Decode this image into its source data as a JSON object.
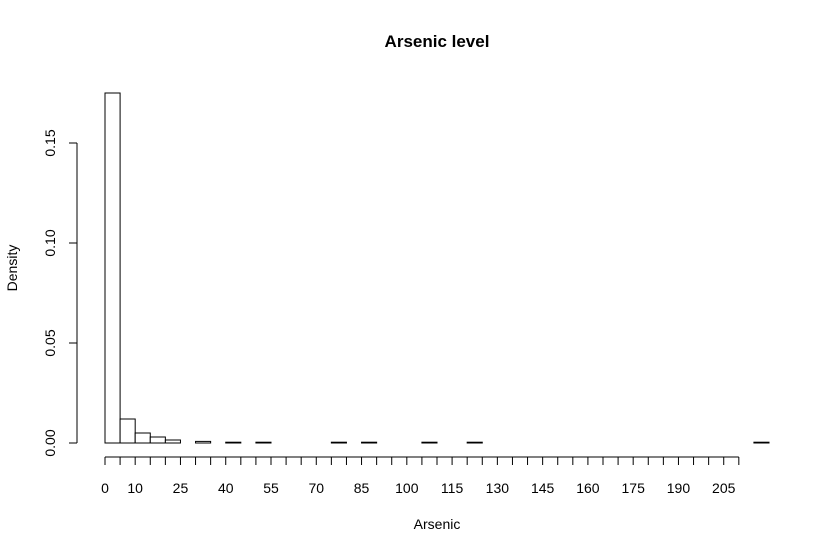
{
  "chart_data": {
    "type": "bar",
    "title": "Arsenic level",
    "xlabel": "Arsenic",
    "ylabel": "Density",
    "bin_width": 5,
    "bin_starts": [
      0,
      5,
      10,
      15,
      20,
      25,
      30,
      35,
      40,
      45,
      50,
      55,
      60,
      65,
      70,
      75,
      80,
      85,
      90,
      95,
      100,
      105,
      110,
      115,
      120,
      125,
      130,
      135,
      140,
      145,
      150,
      155,
      160,
      165,
      170,
      175,
      180,
      185,
      190,
      195,
      200,
      205,
      210,
      215
    ],
    "values": [
      0.175,
      0.012,
      0.005,
      0.003,
      0.0015,
      0.0,
      0.0008,
      0.0,
      0.0004,
      0.0,
      0.0004,
      0.0,
      0.0,
      0.0,
      0.0,
      0.0004,
      0.0,
      0.0004,
      0.0,
      0.0,
      0.0,
      0.0004,
      0.0,
      0.0,
      0.0004,
      0.0,
      0.0,
      0.0,
      0.0,
      0.0,
      0.0,
      0.0,
      0.0,
      0.0,
      0.0,
      0.0,
      0.0,
      0.0,
      0.0,
      0.0,
      0.0,
      0.0,
      0.0,
      0.0004
    ],
    "xlim": [
      0,
      220
    ],
    "ylim": [
      0,
      0.175
    ],
    "x_ticks": [
      0,
      5,
      10,
      15,
      20,
      25,
      30,
      35,
      40,
      45,
      50,
      55,
      60,
      65,
      70,
      75,
      80,
      85,
      90,
      95,
      100,
      105,
      110,
      115,
      120,
      125,
      130,
      135,
      140,
      145,
      150,
      155,
      160,
      165,
      170,
      175,
      180,
      185,
      190,
      195,
      200,
      205,
      210
    ],
    "x_tick_labels": [
      "0",
      "10",
      "25",
      "40",
      "55",
      "70",
      "85",
      "100",
      "115",
      "130",
      "145",
      "160",
      "175",
      "190",
      "205"
    ],
    "x_tick_label_values": [
      0,
      10,
      25,
      40,
      55,
      70,
      85,
      100,
      115,
      130,
      145,
      160,
      175,
      190,
      205
    ],
    "y_ticks": [
      0.0,
      0.05,
      0.1,
      0.15
    ],
    "y_tick_labels": [
      "0.00",
      "0.05",
      "0.10",
      "0.15"
    ],
    "grid": false,
    "legend": "none"
  }
}
